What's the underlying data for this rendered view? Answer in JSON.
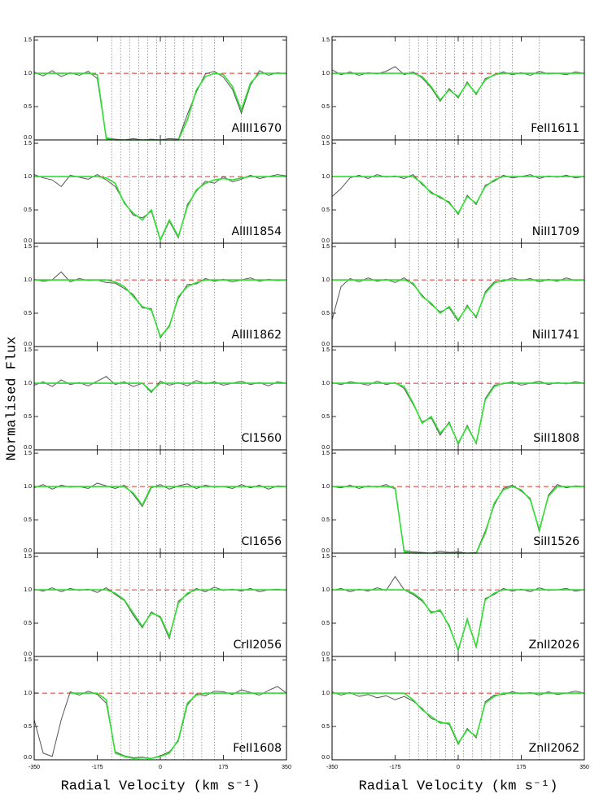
{
  "chart_data": {
    "type": "line",
    "xlabel": "Radial Velocity (km s⁻¹)",
    "ylabel": "Normalised Flux",
    "xlim": [
      -350,
      350
    ],
    "ylim": [
      0,
      1.55
    ],
    "xticks": [
      -350,
      -175,
      0,
      175,
      350
    ],
    "yticks": [
      {
        "value": 0,
        "label": "0.0"
      },
      {
        "value": 0.5,
        "label": "0.5"
      },
      {
        "value": 1,
        "label": "1.0"
      },
      {
        "value": 1.5,
        "label": "1.5"
      }
    ],
    "continuum": 1,
    "continuum_color": "#e03030",
    "components": [
      -135,
      -110,
      -85,
      -60,
      -35,
      -10,
      15,
      40,
      65,
      90,
      115,
      150,
      225
    ],
    "component_color": "#888888",
    "data_color": "#555555",
    "model_color": "#2ee02e",
    "x": [
      -350,
      -325,
      -300,
      -275,
      -250,
      -225,
      -200,
      -175,
      -150,
      -125,
      -100,
      -75,
      -50,
      -25,
      0,
      25,
      50,
      75,
      100,
      125,
      150,
      175,
      200,
      225,
      250,
      275,
      300,
      325,
      350
    ],
    "panels": [
      {
        "label": "AlIII1670",
        "flux": [
          1.02,
          0.96,
          1.04,
          0.95,
          1.01,
          0.97,
          1.03,
          0.92,
          0.03,
          0.01,
          0,
          0.02,
          0,
          0.01,
          0,
          0.02,
          0.01,
          0.38,
          0.72,
          0.99,
          1.03,
          0.94,
          0.76,
          0.4,
          0.82,
          1.04,
          0.97,
          1.01,
          0.99
        ],
        "model": [
          1,
          1,
          1,
          1,
          1,
          1,
          1,
          0.98,
          0.02,
          0,
          0,
          0,
          0,
          0,
          0,
          0,
          0,
          0.3,
          0.75,
          0.95,
          1,
          0.98,
          0.8,
          0.45,
          0.85,
          1,
          1,
          1,
          1
        ]
      },
      {
        "label": "AlIII1854",
        "flux": [
          1.03,
          0.98,
          0.95,
          0.85,
          1.02,
          0.99,
          0.96,
          1.03,
          0.95,
          0.85,
          0.62,
          0.42,
          0.38,
          0.48,
          0.04,
          0.33,
          0.08,
          0.58,
          0.78,
          0.93,
          0.9,
          1.0,
          0.92,
          0.96,
          1.02,
          0.97,
          1.0,
          1.03,
          1.01
        ],
        "model": [
          1,
          1,
          1,
          1,
          1,
          1,
          1,
          1,
          0.98,
          0.9,
          0.6,
          0.45,
          0.35,
          0.5,
          0.05,
          0.35,
          0.1,
          0.55,
          0.8,
          0.9,
          0.95,
          0.97,
          0.95,
          0.98,
          1,
          1,
          1,
          1,
          1
        ]
      },
      {
        "label": "AlIII1862",
        "flux": [
          1.01,
          0.98,
          1.0,
          1.12,
          0.97,
          1.02,
          0.99,
          1.0,
          0.96,
          0.95,
          0.87,
          0.78,
          0.58,
          0.57,
          0.13,
          0.32,
          0.72,
          0.93,
          0.94,
          1.02,
          0.98,
          1.01,
          0.97,
          1.0,
          1.03,
          0.98,
          1.01,
          0.99,
          1.0
        ],
        "model": [
          1,
          1,
          1,
          1,
          1,
          1,
          1,
          1,
          1,
          0.97,
          0.9,
          0.75,
          0.6,
          0.55,
          0.15,
          0.3,
          0.75,
          0.9,
          0.96,
          1,
          1,
          1,
          1,
          1,
          1,
          1,
          1,
          1,
          1
        ]
      },
      {
        "label": "CI1560",
        "flux": [
          0.97,
          1.02,
          0.95,
          1.05,
          0.98,
          1.01,
          0.96,
          1.03,
          1.1,
          0.98,
          1.02,
          0.95,
          1.0,
          0.86,
          1.03,
          0.97,
          1.01,
          0.96,
          1.04,
          0.99,
          1.02,
          0.97,
          1.0,
          1.03,
          0.98,
          1.01,
          0.96,
          1.02,
          1.0
        ],
        "model": [
          1,
          1,
          1,
          1,
          1,
          1,
          1,
          1,
          1,
          1,
          1,
          1,
          1,
          0.88,
          1,
          1,
          1,
          1,
          1,
          1,
          1,
          1,
          1,
          1,
          1,
          1,
          1,
          1,
          1
        ]
      },
      {
        "label": "CI1656",
        "flux": [
          0.98,
          1.03,
          0.96,
          1.02,
          0.99,
          1.0,
          0.97,
          1.05,
          1.01,
          0.97,
          1.02,
          0.88,
          0.7,
          0.98,
          1.03,
          0.96,
          1.01,
          1.04,
          0.97,
          1.02,
          0.99,
          1.0,
          0.97,
          1.03,
          0.98,
          1.02,
          0.96,
          1.01,
          1.0
        ],
        "model": [
          1,
          1,
          1,
          1,
          1,
          1,
          1,
          1,
          1,
          1,
          1,
          0.9,
          0.72,
          1,
          1,
          1,
          1,
          1,
          1,
          1,
          1,
          1,
          1,
          1,
          1,
          1,
          1,
          1,
          1
        ]
      },
      {
        "label": "CrII2056",
        "flux": [
          1.01,
          0.98,
          1.03,
          0.97,
          1.02,
          0.99,
          1.01,
          0.96,
          1.03,
          0.93,
          0.84,
          0.62,
          0.43,
          0.67,
          0.58,
          0.27,
          0.83,
          0.93,
          1.02,
          0.97,
          1.04,
          0.99,
          1.01,
          0.98,
          1.02,
          0.97,
          1.0,
          1.01,
          0.99
        ],
        "model": [
          1,
          1,
          1,
          1,
          1,
          1,
          1,
          1,
          1,
          0.95,
          0.85,
          0.65,
          0.45,
          0.65,
          0.6,
          0.3,
          0.8,
          0.95,
          1,
          1,
          1,
          1,
          1,
          1,
          1,
          1,
          1,
          1,
          1
        ]
      },
      {
        "label": "FeII1608",
        "flux": [
          0.6,
          0.1,
          0.05,
          0.6,
          1.02,
          0.97,
          1.03,
          0.98,
          0.85,
          0.12,
          0.06,
          0.03,
          0.04,
          0.02,
          0.06,
          0.12,
          0.28,
          0.82,
          0.99,
          0.96,
          1.03,
          1.02,
          0.98,
          1.05,
          1.01,
          0.97,
          1.04,
          1.1,
          1.0
        ],
        "model": [
          null,
          null,
          null,
          null,
          1,
          1,
          1,
          1,
          0.9,
          0.1,
          0.05,
          0.02,
          0.03,
          0.02,
          0.05,
          0.1,
          0.3,
          0.85,
          0.97,
          1,
          1,
          1,
          1,
          1,
          1,
          1,
          1,
          1,
          1
        ]
      },
      {
        "label": "FeII1611",
        "flux": [
          1.05,
          0.98,
          1.02,
          0.97,
          1.01,
          0.99,
          1.03,
          1.1,
          0.98,
          1.02,
          0.93,
          0.78,
          0.58,
          0.77,
          0.63,
          0.87,
          0.68,
          0.92,
          0.97,
          1.02,
          0.98,
          1.01,
          0.97,
          1.03,
          0.99,
          1.0,
          0.98,
          1.02,
          1.0
        ],
        "model": [
          1,
          1,
          1,
          1,
          1,
          1,
          1,
          1,
          1,
          1,
          0.95,
          0.8,
          0.6,
          0.75,
          0.65,
          0.85,
          0.7,
          0.9,
          0.98,
          1,
          1,
          1,
          1,
          1,
          1,
          1,
          1,
          1,
          1
        ]
      },
      {
        "label": "NiII1709",
        "flux": [
          0.7,
          0.82,
          0.98,
          1.02,
          0.97,
          1.03,
          0.99,
          1.01,
          0.97,
          1.03,
          0.88,
          0.77,
          0.68,
          0.62,
          0.43,
          0.72,
          0.58,
          0.87,
          0.93,
          1.02,
          0.98,
          1.0,
          1.03,
          0.97,
          1.01,
          0.99,
          1.02,
          0.98,
          1.0
        ],
        "model": [
          1,
          1,
          1,
          1,
          1,
          1,
          1,
          1,
          1,
          1,
          0.9,
          0.75,
          0.7,
          0.6,
          0.45,
          0.7,
          0.6,
          0.85,
          0.95,
          1,
          1,
          1,
          1,
          1,
          1,
          1,
          1,
          1,
          1
        ]
      },
      {
        "label": "NiII1741",
        "flux": [
          0.4,
          0.9,
          1.02,
          0.97,
          1.03,
          0.98,
          1.01,
          0.96,
          1.03,
          0.93,
          0.77,
          0.63,
          0.52,
          0.58,
          0.38,
          0.62,
          0.43,
          0.82,
          0.97,
          0.98,
          1.03,
          0.99,
          1.02,
          0.97,
          1.01,
          0.98,
          1.03,
          0.99,
          1.0
        ],
        "model": [
          1,
          1,
          1,
          1,
          1,
          1,
          1,
          1,
          1,
          0.95,
          0.75,
          0.65,
          0.5,
          0.6,
          0.4,
          0.6,
          0.45,
          0.8,
          0.95,
          1,
          1,
          1,
          1,
          1,
          1,
          1,
          1,
          1,
          1
        ]
      },
      {
        "label": "SiII1808",
        "flux": [
          1.01,
          0.98,
          1.02,
          1.0,
          0.97,
          1.03,
          0.98,
          1.01,
          0.92,
          0.68,
          0.42,
          0.48,
          0.22,
          0.42,
          0.08,
          0.37,
          0.09,
          0.77,
          0.97,
          0.99,
          1.02,
          0.97,
          1.0,
          1.03,
          0.98,
          1.01,
          0.99,
          1.02,
          1.0
        ],
        "model": [
          1,
          1,
          1,
          1,
          1,
          1,
          1,
          1,
          0.95,
          0.7,
          0.4,
          0.5,
          0.25,
          0.4,
          0.1,
          0.35,
          0.1,
          0.75,
          0.95,
          1,
          1,
          1,
          1,
          1,
          1,
          1,
          1,
          1,
          1
        ]
      },
      {
        "label": "SiII1526",
        "flux": [
          1.0,
          0.98,
          1.02,
          0.97,
          1.01,
          0.99,
          1.03,
          0.96,
          0.04,
          0.02,
          0.01,
          0,
          0.03,
          0.01,
          0.02,
          0,
          0.01,
          0.33,
          0.72,
          0.97,
          1.02,
          0.93,
          0.82,
          0.32,
          0.87,
          1.03,
          0.98,
          1.01,
          1.0
        ],
        "model": [
          1,
          1,
          1,
          1,
          1,
          1,
          1,
          0.98,
          0.02,
          0,
          0,
          0,
          0,
          0,
          0,
          0,
          0,
          0.3,
          0.75,
          0.95,
          1,
          0.95,
          0.8,
          0.35,
          0.85,
          1,
          1,
          1,
          1
        ]
      },
      {
        "label": "ZnII2026",
        "flux": [
          0.99,
          1.02,
          0.97,
          1.01,
          0.98,
          1.03,
          0.99,
          1.2,
          1.0,
          0.93,
          0.83,
          0.67,
          0.68,
          0.47,
          0.08,
          0.57,
          0.13,
          0.87,
          0.93,
          1.02,
          0.98,
          1.01,
          0.97,
          1.03,
          0.99,
          1.0,
          1.02,
          0.98,
          1.0
        ],
        "model": [
          1,
          1,
          1,
          1,
          1,
          1,
          1,
          1,
          1,
          0.95,
          0.85,
          0.65,
          0.7,
          0.45,
          0.1,
          0.55,
          0.15,
          0.85,
          0.95,
          1,
          1,
          1,
          1,
          1,
          1,
          1,
          1,
          1,
          1
        ]
      },
      {
        "label": "ZnII2062",
        "flux": [
          1.02,
          0.97,
          1.01,
          0.95,
          0.98,
          0.93,
          0.96,
          0.9,
          0.95,
          0.88,
          0.77,
          0.62,
          0.57,
          0.53,
          0.23,
          0.47,
          0.33,
          0.87,
          0.97,
          0.98,
          1.02,
          0.99,
          1.01,
          0.97,
          1.02,
          0.98,
          1.0,
          1.03,
          1.0
        ],
        "model": [
          1,
          1,
          1,
          1,
          1,
          1,
          1,
          1,
          1,
          0.9,
          0.75,
          0.65,
          0.55,
          0.55,
          0.25,
          0.45,
          0.35,
          0.85,
          0.95,
          1,
          1,
          1,
          1,
          1,
          1,
          1,
          1,
          1,
          1
        ]
      }
    ]
  }
}
